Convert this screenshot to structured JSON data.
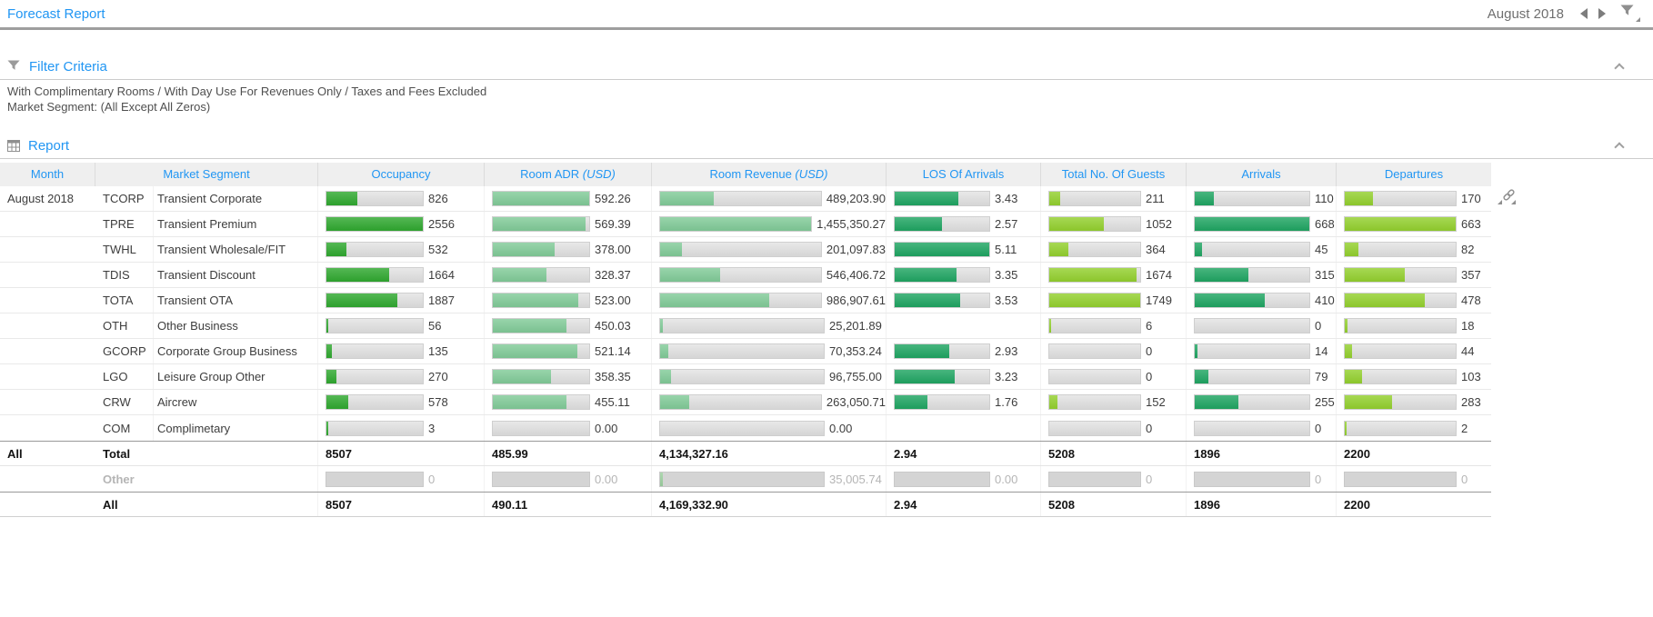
{
  "app": {
    "title": "Forecast Report",
    "period": "August 2018"
  },
  "filter_section": {
    "title": "Filter Criteria",
    "criteria_line1": "With Complimentary Rooms / With Day Use For Revenues Only / Taxes and Fees Excluded",
    "criteria_line2": "Market Segment: (All Except All Zeros)"
  },
  "report_section": {
    "title": "Report"
  },
  "icons": {
    "topbar": [
      "prev-month-icon",
      "next-month-icon",
      "filter-dropdown-icon"
    ],
    "sections": [
      "filter-icon",
      "report-grid-icon",
      "collapse-chevron-icon"
    ],
    "table_side": [
      "kebab-menu-icon",
      "link-icon"
    ]
  },
  "colors": {
    "accent_blue": "#2196f3",
    "bar_track": "#dcdcdc",
    "bars": {
      "occupancy": "#2fa82f",
      "adr": "#81cb98",
      "revenue": "#81cb98",
      "los": "#1fa562",
      "guests": "#93d02e",
      "arrivals": "#1fa562",
      "departures": "#93d02e"
    },
    "muted_text": "#b5b5b5"
  },
  "table": {
    "columns": [
      {
        "key": "month",
        "label": "Month"
      },
      {
        "key": "segment",
        "label": "Market Segment"
      },
      {
        "key": "occupancy",
        "label": "Occupancy"
      },
      {
        "key": "adr",
        "label": "Room ADR",
        "unit": "(USD)"
      },
      {
        "key": "revenue",
        "label": "Room Revenue",
        "unit": "(USD)"
      },
      {
        "key": "los",
        "label": "LOS Of Arrivals"
      },
      {
        "key": "guests",
        "label": "Total No. Of Guests"
      },
      {
        "key": "arrivals",
        "label": "Arrivals"
      },
      {
        "key": "departures",
        "label": "Departures"
      }
    ],
    "rows": [
      {
        "month": "August 2018",
        "code": "TCORP",
        "segment": "Transient Corporate",
        "occupancy": {
          "v": 826,
          "t": "826"
        },
        "adr": {
          "v": 592.26,
          "t": "592.26"
        },
        "revenue": {
          "v": 489203.9,
          "t": "489,203.90"
        },
        "los": {
          "v": 3.43,
          "t": "3.43"
        },
        "guests": {
          "v": 211,
          "t": "211"
        },
        "arrivals": {
          "v": 110,
          "t": "110"
        },
        "departures": {
          "v": 170,
          "t": "170"
        }
      },
      {
        "month": "",
        "code": "TPRE",
        "segment": "Transient Premium",
        "occupancy": {
          "v": 2556,
          "t": "2556"
        },
        "adr": {
          "v": 569.39,
          "t": "569.39"
        },
        "revenue": {
          "v": 1455350.27,
          "t": "1,455,350.27"
        },
        "los": {
          "v": 2.57,
          "t": "2.57"
        },
        "guests": {
          "v": 1052,
          "t": "1052"
        },
        "arrivals": {
          "v": 668,
          "t": "668"
        },
        "departures": {
          "v": 663,
          "t": "663"
        }
      },
      {
        "month": "",
        "code": "TWHL",
        "segment": "Transient Wholesale/FIT",
        "occupancy": {
          "v": 532,
          "t": "532"
        },
        "adr": {
          "v": 378.0,
          "t": "378.00"
        },
        "revenue": {
          "v": 201097.83,
          "t": "201,097.83"
        },
        "los": {
          "v": 5.11,
          "t": "5.11"
        },
        "guests": {
          "v": 364,
          "t": "364"
        },
        "arrivals": {
          "v": 45,
          "t": "45"
        },
        "departures": {
          "v": 82,
          "t": "82"
        }
      },
      {
        "month": "",
        "code": "TDIS",
        "segment": "Transient Discount",
        "occupancy": {
          "v": 1664,
          "t": "1664"
        },
        "adr": {
          "v": 328.37,
          "t": "328.37"
        },
        "revenue": {
          "v": 546406.72,
          "t": "546,406.72"
        },
        "los": {
          "v": 3.35,
          "t": "3.35"
        },
        "guests": {
          "v": 1674,
          "t": "1674"
        },
        "arrivals": {
          "v": 315,
          "t": "315"
        },
        "departures": {
          "v": 357,
          "t": "357"
        }
      },
      {
        "month": "",
        "code": "TOTA",
        "segment": "Transient OTA",
        "occupancy": {
          "v": 1887,
          "t": "1887"
        },
        "adr": {
          "v": 523.0,
          "t": "523.00"
        },
        "revenue": {
          "v": 986907.61,
          "t": "986,907.61"
        },
        "los": {
          "v": 3.53,
          "t": "3.53"
        },
        "guests": {
          "v": 1749,
          "t": "1749"
        },
        "arrivals": {
          "v": 410,
          "t": "410"
        },
        "departures": {
          "v": 478,
          "t": "478"
        }
      },
      {
        "month": "",
        "code": "OTH",
        "segment": "Other Business",
        "occupancy": {
          "v": 56,
          "t": "56"
        },
        "adr": {
          "v": 450.03,
          "t": "450.03"
        },
        "revenue": {
          "v": 25201.89,
          "t": "25,201.89"
        },
        "los": {
          "v": null,
          "t": ""
        },
        "guests": {
          "v": 6,
          "t": "6"
        },
        "arrivals": {
          "v": 0,
          "t": "0"
        },
        "departures": {
          "v": 18,
          "t": "18"
        }
      },
      {
        "month": "",
        "code": "GCORP",
        "segment": "Corporate Group Business",
        "occupancy": {
          "v": 135,
          "t": "135"
        },
        "adr": {
          "v": 521.14,
          "t": "521.14"
        },
        "revenue": {
          "v": 70353.24,
          "t": "70,353.24"
        },
        "los": {
          "v": 2.93,
          "t": "2.93"
        },
        "guests": {
          "v": 0,
          "t": "0"
        },
        "arrivals": {
          "v": 14,
          "t": "14"
        },
        "departures": {
          "v": 44,
          "t": "44"
        }
      },
      {
        "month": "",
        "code": "LGO",
        "segment": "Leisure Group Other",
        "occupancy": {
          "v": 270,
          "t": "270"
        },
        "adr": {
          "v": 358.35,
          "t": "358.35"
        },
        "revenue": {
          "v": 96755.0,
          "t": "96,755.00"
        },
        "los": {
          "v": 3.23,
          "t": "3.23"
        },
        "guests": {
          "v": 0,
          "t": "0"
        },
        "arrivals": {
          "v": 79,
          "t": "79"
        },
        "departures": {
          "v": 103,
          "t": "103"
        }
      },
      {
        "month": "",
        "code": "CRW",
        "segment": "Aircrew",
        "occupancy": {
          "v": 578,
          "t": "578"
        },
        "adr": {
          "v": 455.11,
          "t": "455.11"
        },
        "revenue": {
          "v": 263050.71,
          "t": "263,050.71"
        },
        "los": {
          "v": 1.76,
          "t": "1.76"
        },
        "guests": {
          "v": 152,
          "t": "152"
        },
        "arrivals": {
          "v": 255,
          "t": "255"
        },
        "departures": {
          "v": 283,
          "t": "283"
        }
      },
      {
        "month": "",
        "code": "COM",
        "segment": "Complimetary",
        "occupancy": {
          "v": 3,
          "t": "3"
        },
        "adr": {
          "v": 0,
          "t": "0.00"
        },
        "revenue": {
          "v": 0,
          "t": "0.00"
        },
        "los": {
          "v": null,
          "t": ""
        },
        "guests": {
          "v": 0,
          "t": "0"
        },
        "arrivals": {
          "v": 0,
          "t": "0"
        },
        "departures": {
          "v": 2,
          "t": "2"
        }
      }
    ],
    "totals": [
      {
        "month": "All",
        "label": "Total",
        "style": "bold",
        "values": {
          "occupancy": "8507",
          "adr": "485.99",
          "revenue": "4,134,327.16",
          "los": "2.94",
          "guests": "5208",
          "arrivals": "1896",
          "departures": "2200"
        }
      },
      {
        "month": "",
        "label": "Other",
        "style": "muted",
        "sliver": "revenue",
        "values": {
          "occupancy": "0",
          "adr": "0.00",
          "revenue": "35,005.74",
          "los": "0.00",
          "guests": "0",
          "arrivals": "0",
          "departures": "0"
        }
      },
      {
        "month": "",
        "label": "All",
        "style": "bold",
        "values": {
          "occupancy": "8507",
          "adr": "490.11",
          "revenue": "4,169,332.90",
          "los": "2.94",
          "guests": "5208",
          "arrivals": "1896",
          "departures": "2200"
        }
      }
    ]
  }
}
